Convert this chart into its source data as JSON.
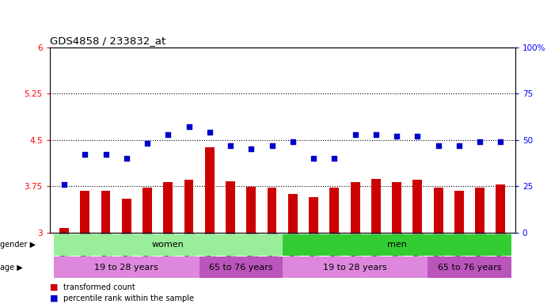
{
  "title": "GDS4858 / 233832_at",
  "samples": [
    "GSM948623",
    "GSM948624",
    "GSM948625",
    "GSM948626",
    "GSM948627",
    "GSM948628",
    "GSM948629",
    "GSM948637",
    "GSM948638",
    "GSM948639",
    "GSM948640",
    "GSM948630",
    "GSM948631",
    "GSM948632",
    "GSM948633",
    "GSM948634",
    "GSM948635",
    "GSM948636",
    "GSM948641",
    "GSM948642",
    "GSM948643",
    "GSM948644"
  ],
  "bar_values": [
    3.08,
    3.68,
    3.68,
    3.55,
    3.73,
    3.82,
    3.85,
    4.38,
    3.83,
    3.74,
    3.73,
    3.62,
    3.57,
    3.73,
    3.82,
    3.87,
    3.82,
    3.85,
    3.73,
    3.68,
    3.73,
    3.78
  ],
  "dot_percentiles": [
    26,
    42,
    42,
    40,
    48,
    53,
    57,
    54,
    47,
    45,
    47,
    49,
    40,
    40,
    53,
    53,
    52,
    52,
    47,
    47,
    49,
    49
  ],
  "gender_groups": [
    {
      "label": "women",
      "start": 0,
      "end": 11,
      "color": "#99ee99"
    },
    {
      "label": "men",
      "start": 11,
      "end": 22,
      "color": "#33cc33"
    }
  ],
  "age_groups": [
    {
      "label": "19 to 28 years",
      "start": 0,
      "end": 7,
      "color": "#dd88dd"
    },
    {
      "label": "65 to 76 years",
      "start": 7,
      "end": 11,
      "color": "#bb55bb"
    },
    {
      "label": "19 to 28 years",
      "start": 11,
      "end": 18,
      "color": "#dd88dd"
    },
    {
      "label": "65 to 76 years",
      "start": 18,
      "end": 22,
      "color": "#bb55bb"
    }
  ],
  "ylim": [
    3.0,
    6.0
  ],
  "yticks": [
    3.0,
    3.75,
    4.5,
    5.25,
    6.0
  ],
  "ytick_labels": [
    "3",
    "3.75",
    "4.5",
    "5.25",
    "6"
  ],
  "y2lim": [
    0,
    100
  ],
  "y2ticks": [
    0,
    25,
    50,
    75,
    100
  ],
  "y2tick_labels": [
    "0",
    "25",
    "50",
    "75",
    "100%"
  ],
  "dotted_lines": [
    3.75,
    4.5,
    5.25
  ],
  "bar_color": "#cc0000",
  "dot_color": "#0000cc",
  "bar_base": 3.0,
  "legend_items": [
    {
      "label": "transformed count",
      "color": "#cc0000"
    },
    {
      "label": "percentile rank within the sample",
      "color": "#0000cc"
    }
  ]
}
